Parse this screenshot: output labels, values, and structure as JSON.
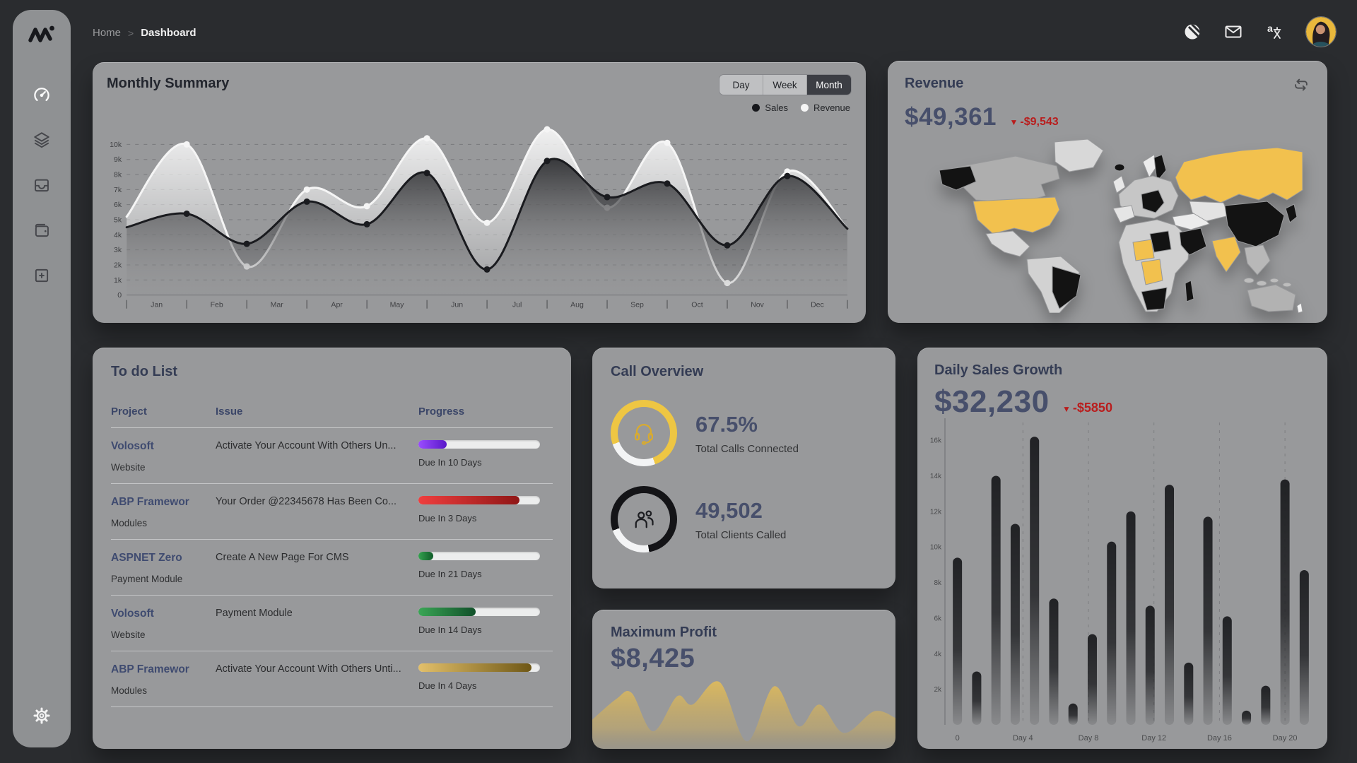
{
  "breadcrumb": {
    "home": "Home",
    "separator": ">",
    "current": "Dashboard"
  },
  "topbar": {
    "icons": [
      "contrast",
      "mail",
      "translate"
    ],
    "avatar": "user-avatar"
  },
  "sidebar": {
    "items": [
      {
        "name": "dashboard",
        "icon": "speedometer-icon",
        "active": true
      },
      {
        "name": "layers",
        "icon": "layers-icon",
        "active": false
      },
      {
        "name": "inbox",
        "icon": "inbox-icon",
        "active": false
      },
      {
        "name": "wallet",
        "icon": "wallet-icon",
        "active": false
      },
      {
        "name": "add",
        "icon": "plus-square-icon",
        "active": false
      }
    ],
    "footer_icon": "gear-icon"
  },
  "monthly_summary": {
    "title": "Monthly Summary",
    "range_options": [
      "Day",
      "Week",
      "Month"
    ],
    "selected_range": "Month",
    "legend": [
      {
        "label": "Sales",
        "color": "#17181c"
      },
      {
        "label": "Revenue",
        "color": "#f5f5f5"
      }
    ],
    "chart": {
      "type": "line-area",
      "y_ticks": [
        "0",
        "1k",
        "2k",
        "3k",
        "4k",
        "5k",
        "6k",
        "7k",
        "8k",
        "9k",
        "10k"
      ],
      "y_max": 11.6,
      "months": [
        "Jan",
        "Feb",
        "Mar",
        "Apr",
        "May",
        "Jun",
        "Jul",
        "Aug",
        "Sep",
        "Oct",
        "Nov",
        "Dec"
      ],
      "series": [
        {
          "name": "Revenue",
          "color": "#f5f5f5",
          "values": [
            5.2,
            10.0,
            1.9,
            7.0,
            5.9,
            10.4,
            4.8,
            11.0,
            5.8,
            10.1,
            0.8,
            8.2,
            4.4
          ]
        },
        {
          "name": "Sales",
          "color": "#1a1b1f",
          "values": [
            4.5,
            5.4,
            3.4,
            6.2,
            4.7,
            8.1,
            1.7,
            8.9,
            6.5,
            7.4,
            3.3,
            7.9,
            4.4
          ]
        }
      ]
    }
  },
  "revenue": {
    "title": "Revenue",
    "value": "$49,361",
    "delta": "-$9,543",
    "delta_direction": "down",
    "map": {
      "accent": "#f2c14e",
      "dark": "#131313",
      "regions": {
        "greenland": "#d8d8d8",
        "canada": "#aeaeae",
        "alaska": "#131313",
        "usa": "#f2c14e",
        "mexico": "#d8d8d8",
        "south_america": "#d2d2d2",
        "brazil": "#131313",
        "iceland": "#131313",
        "uk": "#e8e8e8",
        "norway": "#ececec",
        "sweden": "#131313",
        "europe": "#c6c6c6",
        "central_europe": "#131313",
        "iberia": "#e5e5e5",
        "africa": "#d0d0d0",
        "libya": "#131313",
        "niger_chad": "#f2c14e",
        "congo": "#f2c14e",
        "south_africa": "#131313",
        "madagascar": "#131313",
        "arabia": "#131313",
        "middle_east": "#ececec",
        "russia": "#f2c14e",
        "kazakhstan": "#e3e3e3",
        "china": "#131313",
        "india": "#f2c14e",
        "se_asia": "#b8b8b8",
        "japan": "#131313",
        "indonesia": "#bdbdbd",
        "australia": "#b2b2b2",
        "new_zealand": "#f5f5f5"
      }
    }
  },
  "todo": {
    "title": "To do List",
    "columns": [
      "Project",
      "Issue",
      "Progress"
    ],
    "rows": [
      {
        "project": "Volosoft",
        "sub": "Website",
        "issue": "Activate Your Account With Others Un...",
        "percent": 23,
        "bar_from": "#9a4dff",
        "bar_to": "#5a18c9",
        "due": "Due In 10 Days"
      },
      {
        "project": "ABP Framewor",
        "sub": "Modules",
        "issue": "Your Order @22345678 Has Been Co...",
        "percent": 83,
        "bar_from": "#f03e3e",
        "bar_to": "#8f1616",
        "due": "Due In 3 Days"
      },
      {
        "project": "ASPNET Zero",
        "sub": "Payment Module",
        "issue": "Create A New Page For CMS",
        "percent": 12,
        "bar_from": "#34a24f",
        "bar_to": "#0f5b28",
        "due": "Due In 21 Days"
      },
      {
        "project": "Volosoft",
        "sub": "Website",
        "issue": "Payment Module",
        "percent": 47,
        "bar_from": "#3aa655",
        "bar_to": "#11502a",
        "due": "Due In 14 Days"
      },
      {
        "project": "ABP Framewor",
        "sub": "Modules",
        "issue": "Activate Your Account With Others Unti...",
        "percent": 93,
        "bar_from": "#e3c06a",
        "bar_to": "#6e5716",
        "due": "Due In 4 Days"
      }
    ]
  },
  "call_overview": {
    "title": "Call Overview",
    "stats": [
      {
        "value": "67.5%",
        "label": "Total Calls Connected",
        "arc_percent": 75,
        "ring_color": "#eec643",
        "track_color": "#f3f4f5",
        "icon": "headset-icon"
      },
      {
        "value": "49,502",
        "label": "Total Clients Called",
        "arc_percent": 78,
        "ring_color": "#141417",
        "track_color": "#f3f4f5",
        "icon": "people-icon"
      }
    ]
  },
  "max_profit": {
    "title": "Maximum Profit",
    "value": "$8,425",
    "wave": {
      "type": "area",
      "color": "#dcb964",
      "points": [
        [
          0,
          0.3
        ],
        [
          0.08,
          0.55
        ],
        [
          0.13,
          0.62
        ],
        [
          0.2,
          0.16
        ],
        [
          0.28,
          0.58
        ],
        [
          0.33,
          0.48
        ],
        [
          0.42,
          0.75
        ],
        [
          0.51,
          0.04
        ],
        [
          0.6,
          0.7
        ],
        [
          0.68,
          0.22
        ],
        [
          0.75,
          0.48
        ],
        [
          0.83,
          0.14
        ],
        [
          0.93,
          0.4
        ],
        [
          1,
          0.32
        ]
      ]
    }
  },
  "daily_sales": {
    "title": "Daily Sales Growth",
    "value": "$32,230",
    "delta": "-$5850",
    "delta_direction": "down",
    "chart": {
      "type": "bar",
      "y_ticks": [
        "2k",
        "4k",
        "6k",
        "8k",
        "10k",
        "12k",
        "14k",
        "16k"
      ],
      "y_max": 17,
      "x_labels": [
        "0",
        "Day 4",
        "Day 8",
        "Day 12",
        "Day 16",
        "Day 20"
      ],
      "values": [
        9.4,
        3.0,
        14.0,
        11.3,
        16.2,
        7.1,
        1.2,
        5.1,
        10.3,
        12.0,
        6.7,
        13.5,
        3.5,
        11.7,
        6.1,
        0.8,
        2.2,
        13.8,
        8.7
      ]
    }
  }
}
